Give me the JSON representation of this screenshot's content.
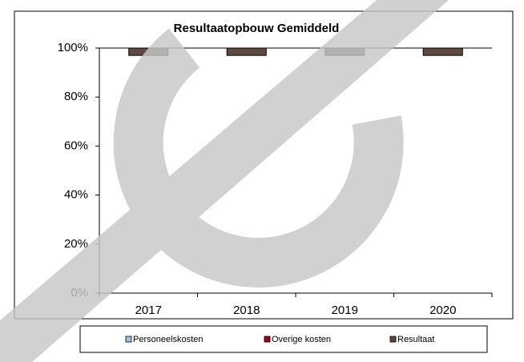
{
  "chart_data": {
    "type": "stacked_bar",
    "title": "Resultaatopbouw Gemiddeld",
    "categories": [
      "2017",
      "2018",
      "2019",
      "2020"
    ],
    "series": [
      {
        "name": "Personeelskosten",
        "color": "#9dc3e6",
        "filled": false,
        "values": [
          97,
          97,
          97,
          97
        ]
      },
      {
        "name": "Overige kosten",
        "color": "#a0001e",
        "values": [
          0,
          0,
          0,
          0
        ]
      },
      {
        "name": "Resultaat",
        "color": "#5e4a40",
        "values": [
          3,
          3,
          3,
          3
        ]
      }
    ],
    "ylim": [
      0,
      100
    ],
    "yticks": [
      {
        "value": 0,
        "label": "0%"
      },
      {
        "value": 20,
        "label": "20%"
      },
      {
        "value": 40,
        "label": "40%"
      },
      {
        "value": 60,
        "label": "60%"
      },
      {
        "value": 80,
        "label": "80%"
      },
      {
        "value": 100,
        "label": "100%"
      }
    ],
    "legend": "bottom"
  }
}
